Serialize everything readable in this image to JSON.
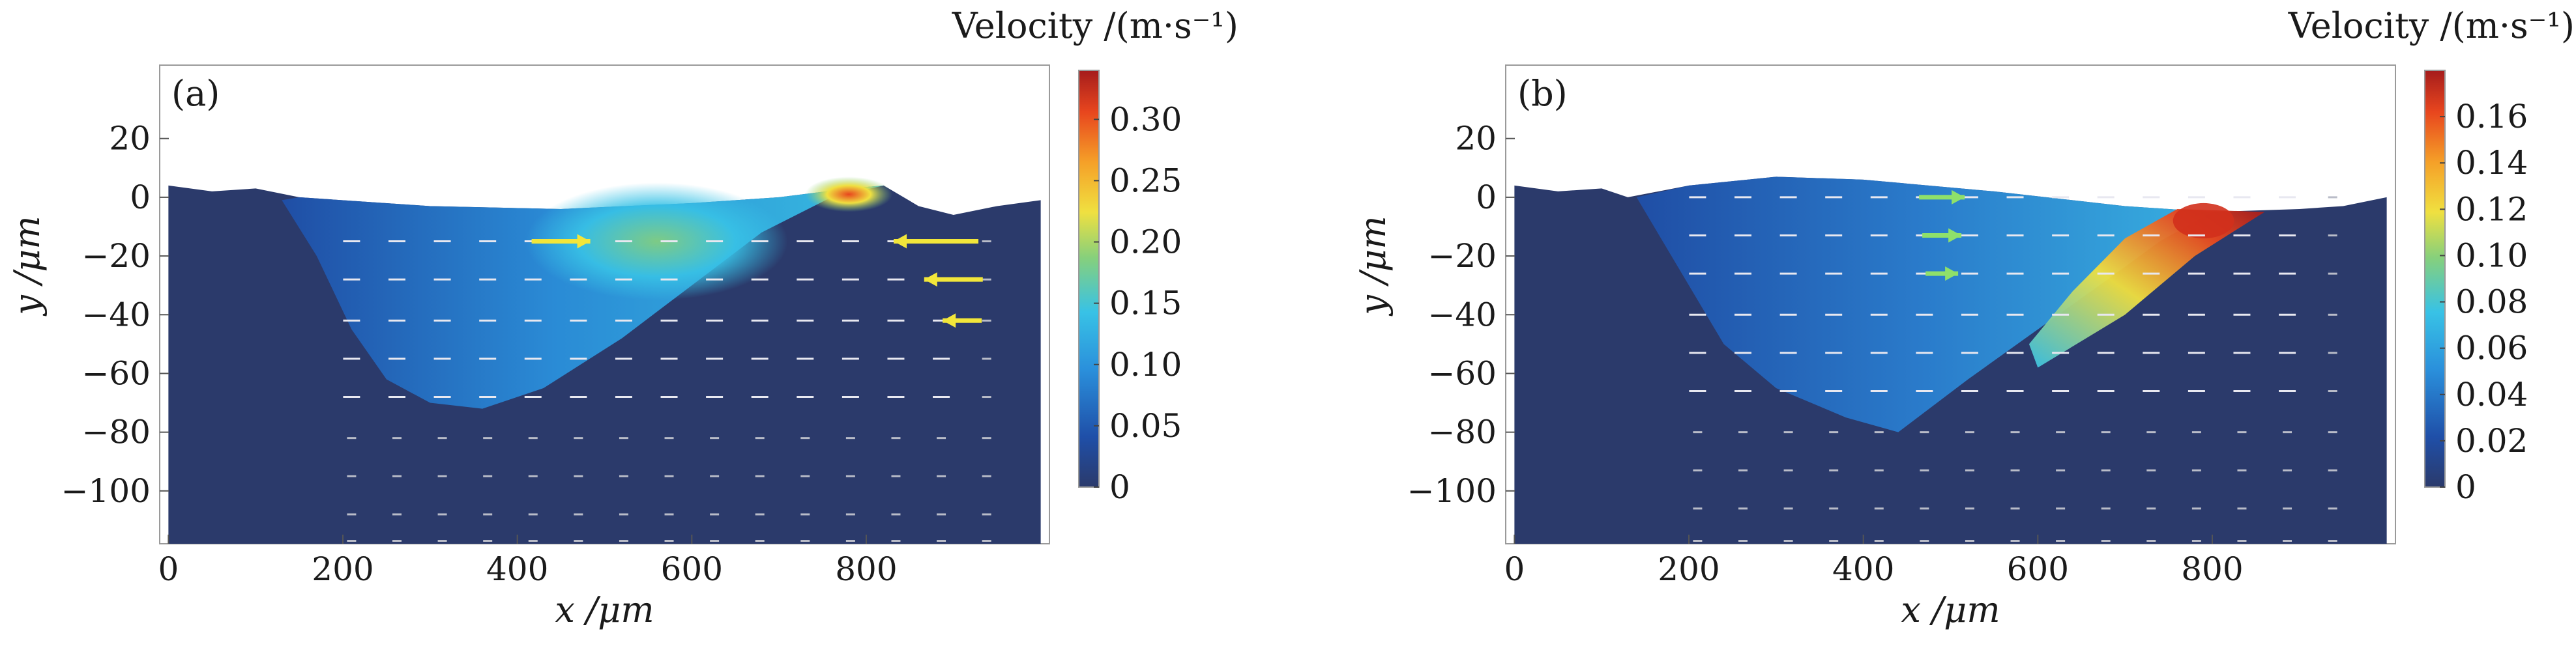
{
  "figure": {
    "panels": [
      {
        "id": "a",
        "panel_label": "(a)",
        "colorbar": {
          "title": "Velocity /(m·s⁻¹)",
          "ticks": [
            "0",
            "0.05",
            "0.10",
            "0.15",
            "0.20",
            "0.25",
            "0.30"
          ],
          "tick_values": [
            0,
            0.05,
            0.1,
            0.15,
            0.2,
            0.25,
            0.3
          ],
          "range": [
            0,
            0.34
          ]
        }
      },
      {
        "id": "b",
        "panel_label": "(b)",
        "colorbar": {
          "title": "Velocity /(m·s⁻¹)",
          "ticks": [
            "0",
            "0.02",
            "0.04",
            "0.06",
            "0.08",
            "0.10",
            "0.12",
            "0.14",
            "0.16"
          ],
          "tick_values": [
            0,
            0.02,
            0.04,
            0.06,
            0.08,
            0.1,
            0.12,
            0.14,
            0.16
          ],
          "range": [
            0,
            0.18
          ]
        }
      }
    ]
  },
  "chart_data": [
    {
      "type": "heatmap",
      "title": "",
      "panel": "(a)",
      "xlabel": "x /μm",
      "ylabel": "y /μm",
      "xlim": [
        -10,
        1010
      ],
      "ylim": [
        -118,
        45
      ],
      "xticks": [
        0,
        200,
        400,
        600,
        800
      ],
      "xtick_labels": [
        "0",
        "200",
        "400",
        "600",
        "800"
      ],
      "yticks": [
        20,
        0,
        -20,
        -40,
        -60,
        -80,
        -100
      ],
      "ytick_labels": [
        "20",
        "0",
        "−20",
        "−40",
        "−60",
        "−80",
        "−100"
      ],
      "colorbar_label": "Velocity /(m·s⁻¹)",
      "colorbar_range": [
        0,
        0.34
      ],
      "colormap": [
        "#2b3a6b",
        "#1f4fa8",
        "#2a8fdb",
        "#38c2e6",
        "#86d07c",
        "#f0e040",
        "#f5a028",
        "#e8461e",
        "#a51c1c"
      ],
      "domain_top_surface": [
        [
          0,
          4
        ],
        [
          50,
          2
        ],
        [
          100,
          3
        ],
        [
          150,
          0
        ],
        [
          300,
          -3
        ],
        [
          450,
          -4
        ],
        [
          600,
          -2
        ],
        [
          700,
          0
        ],
        [
          780,
          3
        ],
        [
          820,
          4
        ],
        [
          860,
          -3
        ],
        [
          900,
          -6
        ],
        [
          950,
          -3
        ],
        [
          1000,
          -1
        ]
      ],
      "melt_pool_boundary": [
        [
          130,
          -1
        ],
        [
          170,
          -20
        ],
        [
          210,
          -45
        ],
        [
          250,
          -62
        ],
        [
          300,
          -70
        ],
        [
          360,
          -72
        ],
        [
          430,
          -65
        ],
        [
          520,
          -48
        ],
        [
          600,
          -30
        ],
        [
          680,
          -12
        ],
        [
          760,
          0
        ],
        [
          820,
          4
        ]
      ],
      "high_velocity_region": {
        "x_range": [
          430,
          820
        ],
        "peak_x": 780,
        "peak_y": 1,
        "peak_value": 0.32
      },
      "arrow_rows_y": [
        -15,
        -28,
        -42,
        -55,
        -68,
        -82,
        -95,
        -108,
        -117
      ],
      "arrow_spacing_x": 52
    },
    {
      "type": "heatmap",
      "title": "",
      "panel": "(b)",
      "xlabel": "x /μm",
      "ylabel": "y /μm",
      "xlim": [
        -10,
        1010
      ],
      "ylim": [
        -118,
        45
      ],
      "xticks": [
        0,
        200,
        400,
        600,
        800
      ],
      "xtick_labels": [
        "0",
        "200",
        "400",
        "600",
        "800"
      ],
      "yticks": [
        20,
        0,
        -20,
        -40,
        -60,
        -80,
        -100
      ],
      "ytick_labels": [
        "20",
        "0",
        "−20",
        "−40",
        "−60",
        "−80",
        "−100"
      ],
      "colorbar_label": "Velocity /(m·s⁻¹)",
      "colorbar_range": [
        0,
        0.18
      ],
      "colormap": [
        "#2b3a6b",
        "#1f4fa8",
        "#2a8fdb",
        "#38c2e6",
        "#86d07c",
        "#f0e040",
        "#f5a028",
        "#e8461e",
        "#a51c1c"
      ],
      "domain_top_surface": [
        [
          0,
          4
        ],
        [
          50,
          2
        ],
        [
          100,
          3
        ],
        [
          130,
          0
        ],
        [
          200,
          4
        ],
        [
          300,
          7
        ],
        [
          400,
          6
        ],
        [
          550,
          2
        ],
        [
          700,
          -3
        ],
        [
          800,
          -5
        ],
        [
          900,
          -4
        ],
        [
          950,
          -3
        ],
        [
          1000,
          0
        ]
      ],
      "melt_pool_boundary": [
        [
          140,
          0
        ],
        [
          190,
          -25
        ],
        [
          240,
          -50
        ],
        [
          300,
          -65
        ],
        [
          380,
          -75
        ],
        [
          440,
          -80
        ],
        [
          520,
          -62
        ],
        [
          600,
          -45
        ],
        [
          680,
          -28
        ],
        [
          740,
          -15
        ],
        [
          800,
          -5
        ]
      ],
      "high_velocity_region": {
        "x_range": [
          580,
          860
        ],
        "peak_x": 790,
        "peak_y": -8,
        "peak_value": 0.17
      },
      "arrow_rows_y": [
        0,
        -13,
        -26,
        -40,
        -53,
        -66,
        -80,
        -93,
        -106,
        -117
      ],
      "arrow_spacing_x": 52
    }
  ]
}
